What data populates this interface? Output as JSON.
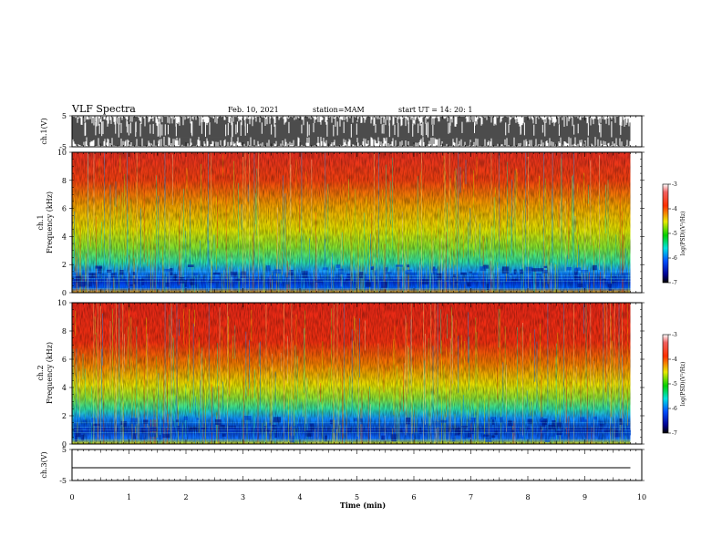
{
  "header": {
    "title": "VLF Spectra",
    "date": "Feb. 10, 2021",
    "station": "station=MAM",
    "start": "start UT =  14: 20: 1"
  },
  "chart_data": [
    {
      "type": "line",
      "name": "ch1-waveform",
      "ylabel": "ch.1(V)",
      "ylim": [
        -5,
        5
      ],
      "yticks": [
        "5",
        "-5"
      ],
      "xlim": [
        0,
        10
      ]
    },
    {
      "type": "heatmap",
      "name": "ch1-spectrogram",
      "ylabel_lines": [
        "ch.1",
        "Frequency (kHz)"
      ],
      "ylim": [
        0,
        10
      ],
      "yticks": [
        "0",
        "2",
        "4",
        "6",
        "8",
        "10"
      ],
      "xlim": [
        0,
        10
      ],
      "data_end_min": 9.8,
      "colorbar": {
        "label": "log(PSD)(V²/Hz)",
        "range": [
          -7,
          -3
        ],
        "ticks": [
          "-3",
          "-4",
          "-5",
          "-6",
          "-7"
        ]
      }
    },
    {
      "type": "heatmap",
      "name": "ch2-spectrogram",
      "ylabel_lines": [
        "ch.2",
        "Frequency (kHz)"
      ],
      "ylim": [
        0,
        10
      ],
      "yticks": [
        "0",
        "2",
        "4",
        "6",
        "8",
        "10"
      ],
      "xlim": [
        0,
        10
      ],
      "data_end_min": 9.8,
      "colorbar": {
        "label": "log(PSD)(V²/Hz)",
        "range": [
          -7,
          -3
        ],
        "ticks": [
          "-3",
          "-4",
          "-5",
          "-6",
          "-7"
        ]
      }
    },
    {
      "type": "line",
      "name": "ch3-waveform",
      "ylabel": "ch.3(V)",
      "ylim": [
        -5,
        5
      ],
      "yticks": [
        "5",
        "-5"
      ],
      "xlim": [
        0,
        10
      ],
      "flat_value": 0
    }
  ],
  "xaxis": {
    "label": "Time (min)",
    "ticks": [
      "0",
      "1",
      "2",
      "3",
      "4",
      "5",
      "6",
      "7",
      "8",
      "9",
      "10"
    ]
  }
}
